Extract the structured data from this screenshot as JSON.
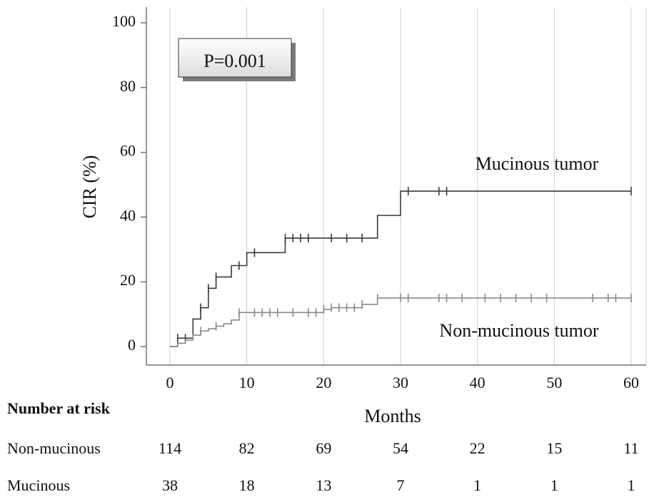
{
  "chart_data": {
    "type": "line",
    "step": true,
    "xlabel": "Months",
    "ylabel": "CIR (%)",
    "xlim": [
      0,
      60
    ],
    "ylim": [
      0,
      100
    ],
    "xticks": [
      0,
      10,
      20,
      30,
      40,
      50,
      60
    ],
    "yticks": [
      0,
      20,
      40,
      60,
      80,
      100
    ],
    "grid": "vertical",
    "annotation": "P=0.001",
    "series": [
      {
        "name": "Mucinous tumor",
        "color": "#3a3a3a",
        "steps": [
          [
            0,
            0
          ],
          [
            1,
            2.6
          ],
          [
            3,
            8.5
          ],
          [
            4,
            12
          ],
          [
            5,
            18
          ],
          [
            6,
            21.5
          ],
          [
            8,
            25
          ],
          [
            10,
            29
          ],
          [
            15,
            33.5
          ],
          [
            27,
            40.5
          ],
          [
            30,
            48
          ],
          [
            60,
            48
          ]
        ],
        "censored": [
          1,
          2,
          4,
          5,
          6,
          9,
          11,
          15,
          16,
          17,
          18,
          21,
          23,
          25,
          31,
          35,
          36,
          60
        ]
      },
      {
        "name": "Non-mucinous tumor",
        "color": "#8a8a8a",
        "steps": [
          [
            0,
            0
          ],
          [
            1,
            1
          ],
          [
            2,
            2
          ],
          [
            3,
            3.5
          ],
          [
            4,
            4.8
          ],
          [
            5,
            5.5
          ],
          [
            6,
            6.3
          ],
          [
            7,
            7
          ],
          [
            8,
            8.2
          ],
          [
            9,
            10.5
          ],
          [
            20,
            11.5
          ],
          [
            21,
            12
          ],
          [
            25,
            13
          ],
          [
            27,
            15
          ],
          [
            60,
            15
          ]
        ],
        "censored": [
          4,
          6,
          9,
          11,
          12,
          13,
          14,
          16,
          18,
          19,
          20,
          21,
          22,
          23,
          24,
          25,
          27,
          30,
          31,
          35,
          36,
          38,
          41,
          43,
          45,
          47,
          49,
          55,
          57,
          58,
          60
        ]
      }
    ],
    "risk_table": {
      "title": "Number at risk",
      "time_points": [
        0,
        10,
        20,
        30,
        40,
        50,
        60
      ],
      "rows": [
        {
          "label": "Non-mucinous",
          "values": [
            114,
            82,
            69,
            54,
            22,
            15,
            11
          ]
        },
        {
          "label": "Mucinous",
          "values": [
            38,
            18,
            13,
            7,
            1,
            1,
            1
          ]
        }
      ]
    }
  }
}
